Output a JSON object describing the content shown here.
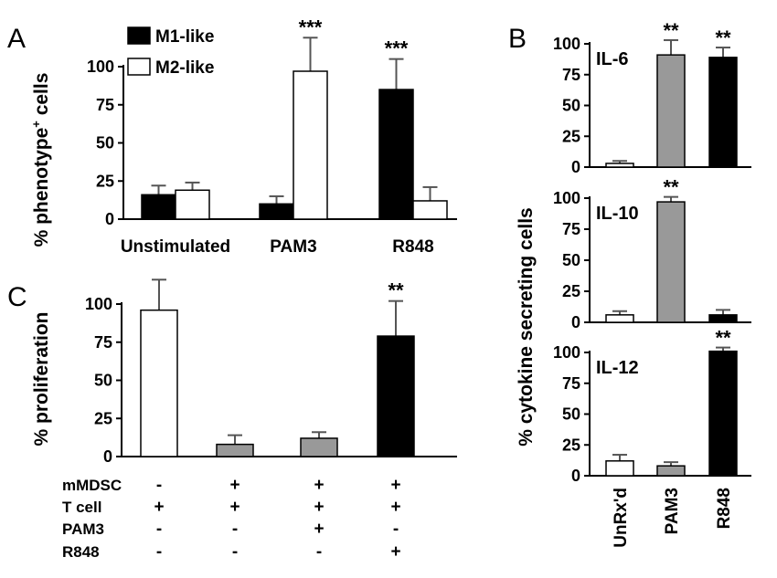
{
  "chart_data": [
    {
      "id": "A",
      "type": "bar",
      "panel_label": "A",
      "ylabel": "% phenotype",
      "ylabel_superscript": "+",
      "ylabel_suffix": " cells",
      "ylim": [
        0,
        100
      ],
      "yticks": [
        0,
        25,
        50,
        75,
        100
      ],
      "categories": [
        "Unstimulated",
        "PAM3",
        "R848"
      ],
      "legend": {
        "position": "top-left"
      },
      "series": [
        {
          "name": "M1-like",
          "color": "#000000",
          "values": [
            16,
            10,
            85
          ],
          "errors": [
            6,
            5,
            20
          ]
        },
        {
          "name": "M2-like",
          "color": "#ffffff",
          "values": [
            19,
            97,
            12
          ],
          "errors": [
            5,
            22,
            9
          ]
        }
      ],
      "annotations": [
        {
          "category": "PAM3",
          "series": "M2-like",
          "text": "***"
        },
        {
          "category": "R848",
          "series": "M1-like",
          "text": "***"
        }
      ]
    },
    {
      "id": "B",
      "type": "bar",
      "panel_label": "B",
      "ylabel": "% cytokine secreting cells",
      "categories": [
        "UnRx'd",
        "PAM3",
        "R848"
      ],
      "bar_colors": [
        "#ffffff",
        "#999999",
        "#000000"
      ],
      "ylim": [
        0,
        100
      ],
      "yticks": [
        0,
        25,
        50,
        75,
        100
      ],
      "subplots": [
        {
          "title": "IL-6",
          "values": [
            3,
            91,
            89
          ],
          "errors": [
            2,
            12,
            8
          ],
          "annotations": [
            "",
            "**",
            "**"
          ]
        },
        {
          "title": "IL-10",
          "values": [
            6,
            97,
            6
          ],
          "errors": [
            3,
            4,
            4
          ],
          "annotations": [
            "",
            "**",
            ""
          ]
        },
        {
          "title": "IL-12",
          "values": [
            12,
            8,
            101
          ],
          "errors": [
            5,
            3,
            3
          ],
          "annotations": [
            "",
            "",
            "**"
          ]
        }
      ]
    },
    {
      "id": "C",
      "type": "bar",
      "panel_label": "C",
      "ylabel": "% proliferation",
      "ylim": [
        0,
        100
      ],
      "yticks": [
        0,
        25,
        50,
        75,
        100
      ],
      "values": [
        96,
        8,
        12,
        79
      ],
      "errors": [
        20,
        6,
        4,
        23
      ],
      "bar_colors": [
        "#ffffff",
        "#999999",
        "#999999",
        "#000000"
      ],
      "annotations": [
        "",
        "",
        "",
        "**"
      ],
      "condition_table": [
        {
          "label": "mMDSC",
          "marks": [
            "-",
            "+",
            "+",
            "+"
          ]
        },
        {
          "label": "T cell",
          "marks": [
            "+",
            "+",
            "+",
            "+"
          ]
        },
        {
          "label": "PAM3",
          "marks": [
            "-",
            "-",
            "+",
            "-"
          ]
        },
        {
          "label": "R848",
          "marks": [
            "-",
            "-",
            "-",
            "+"
          ]
        }
      ]
    }
  ]
}
